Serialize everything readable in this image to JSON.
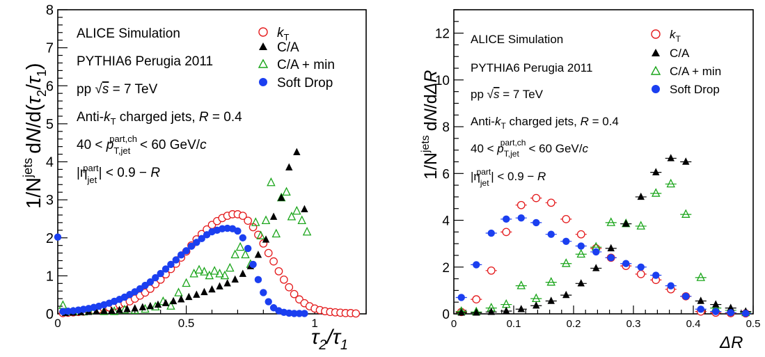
{
  "chart_data": [
    {
      "type": "scatter",
      "xlabel": "τ₂/τ₁",
      "ylabel": "1/N^jets dN/d(τ₂/τ₁)",
      "xlim": [
        0,
        1.2
      ],
      "ylim": [
        0,
        8
      ],
      "x_ticks": [
        "0",
        "0.5",
        "1"
      ],
      "y_ticks": [
        "0",
        "1",
        "2",
        "3",
        "4",
        "5",
        "6",
        "7",
        "8"
      ],
      "legend_position": "top-right",
      "annotations": [
        "ALICE Simulation",
        "PYTHIA6 Perugia 2011",
        "pp √s = 7 TeV",
        "Anti-kT charged jets, R = 0.4",
        "40 < p T,jet part,ch < 60 GeV/c",
        "|η jet part| < 0.9 − R"
      ],
      "series": [
        {
          "name": "kT",
          "marker": "open-circle",
          "color": "#e41a1c",
          "x": [
            0.02,
            0.04,
            0.06,
            0.08,
            0.1,
            0.12,
            0.14,
            0.16,
            0.18,
            0.2,
            0.22,
            0.24,
            0.26,
            0.28,
            0.3,
            0.32,
            0.34,
            0.36,
            0.38,
            0.4,
            0.42,
            0.44,
            0.46,
            0.48,
            0.5,
            0.52,
            0.54,
            0.56,
            0.58,
            0.6,
            0.62,
            0.64,
            0.66,
            0.68,
            0.7,
            0.72,
            0.74,
            0.76,
            0.78,
            0.8,
            0.82,
            0.84,
            0.86,
            0.88,
            0.9,
            0.92,
            0.94,
            0.96,
            0.98,
            1.0,
            1.02,
            1.04,
            1.06,
            1.08,
            1.1,
            1.12,
            1.14,
            1.16
          ],
          "y": [
            0.02,
            0.03,
            0.04,
            0.05,
            0.06,
            0.08,
            0.1,
            0.12,
            0.14,
            0.17,
            0.2,
            0.24,
            0.28,
            0.33,
            0.4,
            0.48,
            0.56,
            0.66,
            0.78,
            0.9,
            1.04,
            1.18,
            1.32,
            1.48,
            1.64,
            1.8,
            1.96,
            2.1,
            2.22,
            2.34,
            2.44,
            2.52,
            2.58,
            2.62,
            2.62,
            2.58,
            2.45,
            2.28,
            2.08,
            1.85,
            1.6,
            1.38,
            1.12,
            0.9,
            0.7,
            0.52,
            0.38,
            0.28,
            0.2,
            0.14,
            0.1,
            0.07,
            0.05,
            0.04,
            0.03,
            0.02,
            0.02,
            0.01
          ]
        },
        {
          "name": "C/A",
          "marker": "filled-triangle",
          "color": "#000000",
          "x": [
            0.03,
            0.06,
            0.09,
            0.12,
            0.15,
            0.18,
            0.21,
            0.24,
            0.27,
            0.3,
            0.33,
            0.36,
            0.39,
            0.42,
            0.45,
            0.48,
            0.51,
            0.54,
            0.57,
            0.6,
            0.63,
            0.66,
            0.69,
            0.72,
            0.75,
            0.78,
            0.81,
            0.84,
            0.87,
            0.9,
            0.93,
            0.96
          ],
          "y": [
            0.02,
            0.03,
            0.04,
            0.05,
            0.06,
            0.07,
            0.08,
            0.1,
            0.12,
            0.14,
            0.17,
            0.2,
            0.24,
            0.28,
            0.33,
            0.38,
            0.44,
            0.5,
            0.57,
            0.64,
            0.72,
            0.8,
            0.9,
            1.05,
            1.25,
            1.55,
            1.95,
            2.55,
            3.05,
            3.85,
            4.25,
            2.75
          ]
        },
        {
          "name": "C/A + min",
          "marker": "open-triangle",
          "color": "#1aa51a",
          "x": [
            0.02,
            0.06,
            0.1,
            0.14,
            0.18,
            0.22,
            0.26,
            0.3,
            0.34,
            0.38,
            0.41,
            0.44,
            0.47,
            0.5,
            0.53,
            0.55,
            0.57,
            0.59,
            0.61,
            0.63,
            0.65,
            0.67,
            0.69,
            0.71,
            0.73,
            0.75,
            0.77,
            0.79,
            0.81,
            0.83,
            0.85,
            0.87,
            0.89,
            0.91,
            0.93,
            0.95,
            0.97
          ],
          "y": [
            0.22,
            0.05,
            0.05,
            0.08,
            0.06,
            0.06,
            0.1,
            0.09,
            0.12,
            0.18,
            0.32,
            0.2,
            0.55,
            0.8,
            1.05,
            1.15,
            1.1,
            1.0,
            1.12,
            1.05,
            1.0,
            1.2,
            1.55,
            1.75,
            1.55,
            1.3,
            2.4,
            2.05,
            2.45,
            3.45,
            2.1,
            3.05,
            3.2,
            2.55,
            2.7,
            2.45,
            2.15
          ]
        },
        {
          "name": "Soft Drop",
          "marker": "filled-circle",
          "color": "#1b3ff0",
          "x": [
            0.0,
            0.02,
            0.04,
            0.06,
            0.08,
            0.1,
            0.12,
            0.14,
            0.16,
            0.18,
            0.2,
            0.22,
            0.24,
            0.26,
            0.28,
            0.3,
            0.32,
            0.34,
            0.36,
            0.38,
            0.4,
            0.42,
            0.44,
            0.46,
            0.48,
            0.5,
            0.52,
            0.54,
            0.56,
            0.58,
            0.6,
            0.62,
            0.64,
            0.66,
            0.68,
            0.7,
            0.72,
            0.74,
            0.76,
            0.78,
            0.8,
            0.82,
            0.84,
            0.86,
            0.88,
            0.9,
            0.92,
            0.94,
            0.96
          ],
          "y": [
            2.02,
            0.06,
            0.07,
            0.08,
            0.1,
            0.12,
            0.14,
            0.17,
            0.2,
            0.24,
            0.28,
            0.33,
            0.38,
            0.44,
            0.51,
            0.58,
            0.66,
            0.75,
            0.84,
            0.95,
            1.06,
            1.18,
            1.3,
            1.42,
            1.55,
            1.66,
            1.78,
            1.88,
            1.98,
            2.08,
            2.16,
            2.2,
            2.24,
            2.25,
            2.24,
            2.18,
            2.0,
            1.72,
            1.3,
            0.9,
            0.56,
            0.32,
            0.16,
            0.08,
            0.04,
            0.02,
            0.01,
            0.01,
            0.01
          ]
        }
      ]
    },
    {
      "type": "scatter",
      "xlabel": "ΔR",
      "ylabel": "1/N^jets dN/dΔR",
      "xlim": [
        0,
        0.5
      ],
      "ylim": [
        0,
        13
      ],
      "x_ticks": [
        "0",
        "0.1",
        "0.2",
        "0.3",
        "0.4",
        "0.5"
      ],
      "y_ticks": [
        "0",
        "2",
        "4",
        "6",
        "8",
        "10",
        "12"
      ],
      "legend_position": "top-right",
      "annotations": [
        "ALICE Simulation",
        "PYTHIA6 Perugia 2011",
        "pp √s = 7 TeV",
        "Anti-kT charged jets, R = 0.4",
        "40 < p T,jet part,ch < 60 GeV/c",
        "|η jet part| < 0.9 − R"
      ],
      "series": [
        {
          "name": "kT",
          "marker": "open-circle",
          "color": "#e41a1c",
          "x": [
            0.0125,
            0.0375,
            0.0625,
            0.0875,
            0.1125,
            0.1375,
            0.1625,
            0.1875,
            0.2125,
            0.2375,
            0.2625,
            0.2875,
            0.3125,
            0.3375,
            0.3625,
            0.3875,
            0.4125,
            0.4375,
            0.4625,
            0.4875
          ],
          "y": [
            0.08,
            0.62,
            1.85,
            3.5,
            4.65,
            4.95,
            4.75,
            4.05,
            3.4,
            2.8,
            2.4,
            2.05,
            1.7,
            1.45,
            1.05,
            0.75,
            0.1,
            0.05,
            0.03,
            0.02
          ]
        },
        {
          "name": "C/A",
          "marker": "filled-triangle",
          "color": "#000000",
          "x": [
            0.0125,
            0.0375,
            0.0625,
            0.0875,
            0.1125,
            0.1375,
            0.1625,
            0.1875,
            0.2125,
            0.2375,
            0.2625,
            0.2875,
            0.3125,
            0.3375,
            0.3625,
            0.3875,
            0.4125,
            0.4375,
            0.4625,
            0.4875
          ],
          "y": [
            0.05,
            0.05,
            0.08,
            0.12,
            0.2,
            0.35,
            0.55,
            0.8,
            1.3,
            1.95,
            2.8,
            3.85,
            5.0,
            6.05,
            6.65,
            6.5,
            0.55,
            0.4,
            0.25,
            0.1
          ]
        },
        {
          "name": "C/A + min",
          "marker": "open-triangle",
          "color": "#1aa51a",
          "x": [
            0.0125,
            0.0375,
            0.0625,
            0.0875,
            0.1125,
            0.1375,
            0.1625,
            0.1875,
            0.2125,
            0.2375,
            0.2625,
            0.2875,
            0.3125,
            0.3375,
            0.3625,
            0.3875,
            0.4125,
            0.4375,
            0.4625,
            0.4875
          ],
          "y": [
            0.1,
            0.08,
            0.25,
            0.4,
            1.2,
            0.65,
            1.35,
            2.15,
            2.55,
            2.85,
            3.9,
            3.85,
            3.75,
            5.15,
            5.55,
            4.25,
            1.55,
            0.25,
            0.15,
            0.05
          ]
        },
        {
          "name": "Soft Drop",
          "marker": "filled-circle",
          "color": "#1b3ff0",
          "x": [
            0.0125,
            0.0375,
            0.0625,
            0.0875,
            0.1125,
            0.1375,
            0.1625,
            0.1875,
            0.2125,
            0.2375,
            0.2625,
            0.2875,
            0.3125,
            0.3375,
            0.3625,
            0.3875,
            0.4125,
            0.4375,
            0.4625,
            0.4875
          ],
          "y": [
            0.7,
            2.1,
            3.45,
            4.05,
            4.1,
            3.9,
            3.4,
            3.1,
            2.9,
            2.65,
            2.4,
            2.15,
            2.0,
            1.65,
            1.2,
            0.75,
            0.2,
            0.1,
            0.05,
            0.02
          ]
        }
      ]
    }
  ],
  "legend_labels": [
    "kT",
    "C/A",
    "C/A + min",
    "Soft Drop"
  ]
}
